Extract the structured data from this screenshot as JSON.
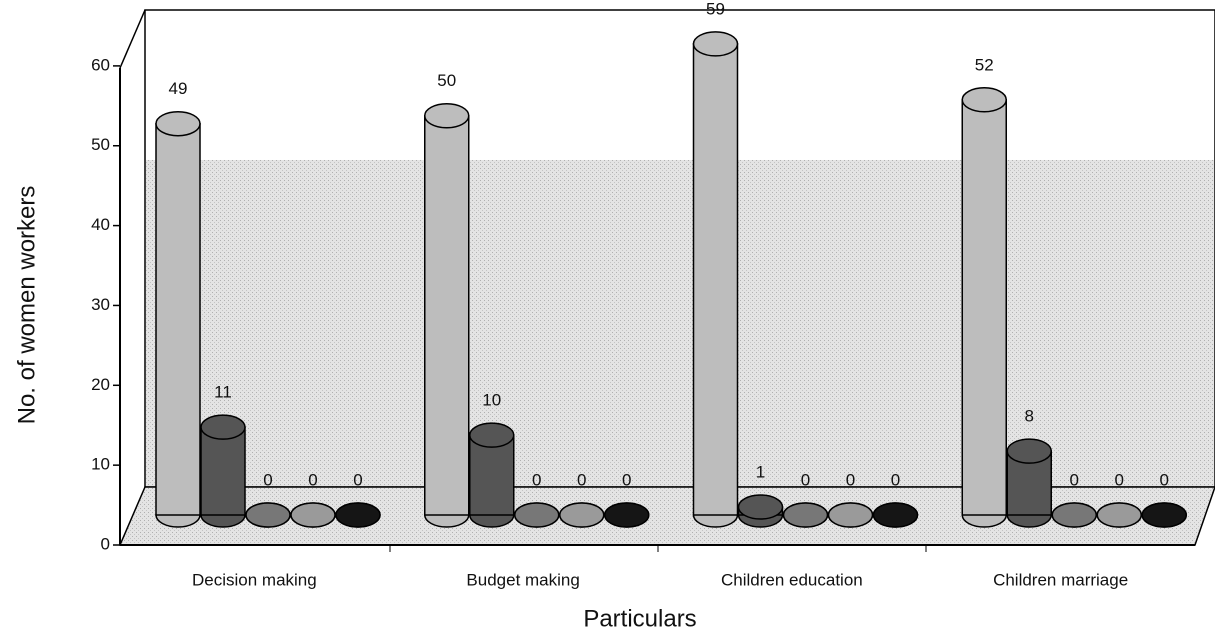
{
  "chart_data": {
    "type": "bar3d",
    "xlabel": "Particulars",
    "ylabel": "No. of women workers",
    "categories": [
      "Decision making",
      "Budget making",
      "Children education",
      "Children marriage"
    ],
    "series": [
      {
        "color": "#bdbdbd",
        "values": [
          49,
          50,
          59,
          52
        ]
      },
      {
        "color": "#555555",
        "values": [
          11,
          10,
          1,
          8
        ]
      },
      {
        "color": "#777777",
        "values": [
          0,
          0,
          0,
          0
        ]
      },
      {
        "color": "#9a9a9a",
        "values": [
          0,
          0,
          0,
          0
        ]
      },
      {
        "color": "#151515",
        "values": [
          0,
          0,
          0,
          0
        ]
      }
    ],
    "ylim": [
      0,
      67
    ],
    "yticks": [
      0,
      10,
      20,
      30,
      40,
      50,
      60
    ]
  }
}
